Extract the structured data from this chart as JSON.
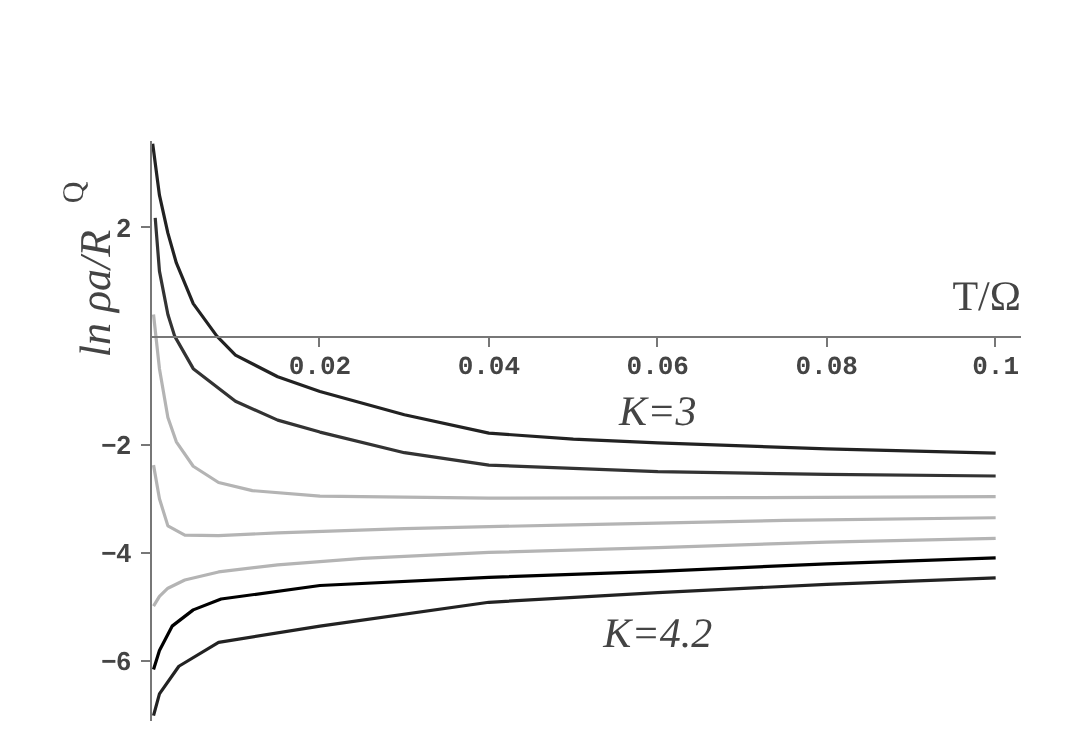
{
  "chart_data": {
    "type": "line",
    "xlabel": "T/Ω",
    "ylabel": "ln ρa/R$_{Q}$",
    "xlim": [
      0,
      0.103
    ],
    "ylim": [
      -7.1,
      3.6
    ],
    "xticks": [
      0.02,
      0.04,
      0.06,
      0.08,
      {
        "value": 0.1,
        "label": "0.1"
      }
    ],
    "yticks": [
      -6,
      -4,
      -2,
      2
    ],
    "grid": false,
    "marker": "none",
    "line_style": "solid",
    "annotations": [
      "K=3",
      "K=4.2"
    ],
    "series": [
      {
        "color": "#222222",
        "x": [
          0.0002,
          0.001,
          0.002,
          0.003,
          0.005,
          0.0078,
          0.01,
          0.015,
          0.02,
          0.03,
          0.04,
          0.05,
          0.06,
          0.08,
          0.1
        ],
        "values": [
          3.55,
          2.6,
          1.9,
          1.35,
          0.6,
          0,
          -0.35,
          -0.75,
          -1.02,
          -1.45,
          -1.79,
          -1.9,
          -1.97,
          -2.08,
          -2.16
        ]
      },
      {
        "color": "#333333",
        "x": [
          0.0005,
          0.001,
          0.002,
          0.0028,
          0.005,
          0.01,
          0.015,
          0.02,
          0.03,
          0.04,
          0.06,
          0.08,
          0.1
        ],
        "values": [
          2.18,
          1.2,
          0.4,
          0,
          -0.6,
          -1.2,
          -1.55,
          -1.77,
          -2.15,
          -2.38,
          -2.5,
          -2.55,
          -2.58
        ]
      },
      {
        "color": "#b4b4b4",
        "x": [
          0.0003,
          0.001,
          0.002,
          0.003,
          0.005,
          0.008,
          0.012,
          0.02,
          0.04,
          0.07,
          0.1
        ],
        "values": [
          0.4,
          -0.6,
          -1.5,
          -1.95,
          -2.4,
          -2.7,
          -2.85,
          -2.95,
          -2.99,
          -2.98,
          -2.96
        ]
      },
      {
        "color": "#b4b4b4",
        "x": [
          0.0003,
          0.001,
          0.002,
          0.004,
          0.008,
          0.015,
          0.03,
          0.05,
          0.075,
          0.1
        ],
        "values": [
          -2.38,
          -3.0,
          -3.5,
          -3.67,
          -3.68,
          -3.63,
          -3.55,
          -3.48,
          -3.4,
          -3.35
        ]
      },
      {
        "color": "#b4b4b4",
        "x": [
          0.0003,
          0.001,
          0.002,
          0.004,
          0.008,
          0.015,
          0.025,
          0.04,
          0.06,
          0.08,
          0.1
        ],
        "values": [
          -4.98,
          -4.8,
          -4.65,
          -4.5,
          -4.35,
          -4.22,
          -4.1,
          -3.99,
          -3.9,
          -3.8,
          -3.73
        ]
      },
      {
        "color": "#000000",
        "x": [
          0.0003,
          0.001,
          0.0025,
          0.005,
          0.0083,
          0.02,
          0.04,
          0.06,
          0.08,
          0.1
        ],
        "values": [
          -6.15,
          -5.8,
          -5.35,
          -5.05,
          -4.85,
          -4.6,
          -4.45,
          -4.34,
          -4.2,
          -4.09
        ]
      },
      {
        "color": "#222222",
        "x": [
          0.0003,
          0.001,
          0.0033,
          0.008,
          0.02,
          0.04,
          0.06,
          0.08,
          0.1
        ],
        "values": [
          -7.0,
          -6.6,
          -6.09,
          -5.65,
          -5.35,
          -4.91,
          -4.73,
          -4.58,
          -4.46
        ]
      }
    ]
  }
}
